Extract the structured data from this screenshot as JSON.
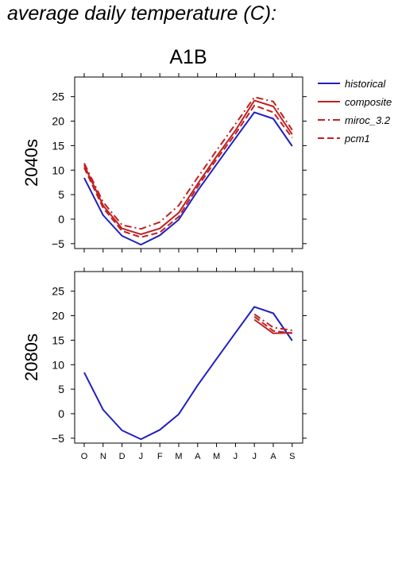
{
  "page": {
    "title": "average daily temperature (C):"
  },
  "chart_data": {
    "type": "line",
    "scenario": "A1B",
    "categories": [
      "O",
      "N",
      "D",
      "J",
      "F",
      "M",
      "A",
      "M",
      "J",
      "J",
      "A",
      "S"
    ],
    "yticks": [
      -5,
      0,
      5,
      10,
      15,
      20,
      25
    ],
    "ylim": [
      -6,
      29
    ],
    "legend": {
      "placement": "right",
      "entries": [
        {
          "name": "historical",
          "color": "#2020c0",
          "dash": "solid"
        },
        {
          "name": "composite",
          "color": "#c02020",
          "dash": "solid"
        },
        {
          "name": "miroc_3.2",
          "color": "#c02020",
          "dash": "dashdot"
        },
        {
          "name": "pcm1",
          "color": "#c02020",
          "dash": "dashed"
        }
      ]
    },
    "panels": [
      {
        "label": "2040s",
        "series": [
          {
            "name": "historical",
            "color": "#2020c0",
            "dash": "solid",
            "values": [
              8.4,
              0.8,
              -3.4,
              -5.2,
              -3.3,
              -0.1,
              5.8,
              11.2,
              16.5,
              21.8,
              20.5,
              14.9
            ]
          },
          {
            "name": "composite",
            "color": "#c02020",
            "dash": "solid",
            "values": [
              11.0,
              2.8,
              -1.9,
              -3.1,
              -1.9,
              1.3,
              7.2,
              12.8,
              18.1,
              24.2,
              23.0,
              17.3
            ]
          },
          {
            "name": "miroc_3.2",
            "color": "#c02020",
            "dash": "dashdot",
            "values": [
              11.4,
              3.5,
              -1.2,
              -2.0,
              -0.6,
              2.8,
              8.5,
              14.0,
              19.4,
              24.9,
              24.0,
              18.2
            ]
          },
          {
            "name": "pcm1",
            "color": "#c02020",
            "dash": "dashed",
            "values": [
              10.5,
              2.3,
              -2.4,
              -3.7,
              -2.7,
              0.5,
              6.6,
              12.2,
              17.4,
              23.2,
              21.8,
              16.6
            ]
          }
        ]
      },
      {
        "label": "2080s",
        "series": [
          {
            "name": "historical",
            "color": "#2020c0",
            "dash": "solid",
            "values": [
              8.4,
              0.8,
              -3.4,
              -5.2,
              -3.3,
              -0.1,
              5.8,
              11.2,
              16.5,
              21.8,
              20.5,
              14.9
            ]
          },
          {
            "name": "composite",
            "color": "#c02020",
            "dash": "solid",
            "values": [
              null,
              null,
              null,
              null,
              null,
              null,
              null,
              null,
              null,
              19.2,
              16.4,
              16.5
            ]
          },
          {
            "name": "miroc_3.2",
            "color": "#c02020",
            "dash": "dashdot",
            "values": [
              null,
              null,
              null,
              null,
              null,
              null,
              null,
              null,
              null,
              20.3,
              17.6,
              17.0
            ]
          },
          {
            "name": "pcm1",
            "color": "#c02020",
            "dash": "dashed",
            "values": [
              null,
              null,
              null,
              null,
              null,
              null,
              null,
              null,
              null,
              19.8,
              16.9,
              16.4
            ]
          }
        ]
      }
    ]
  }
}
